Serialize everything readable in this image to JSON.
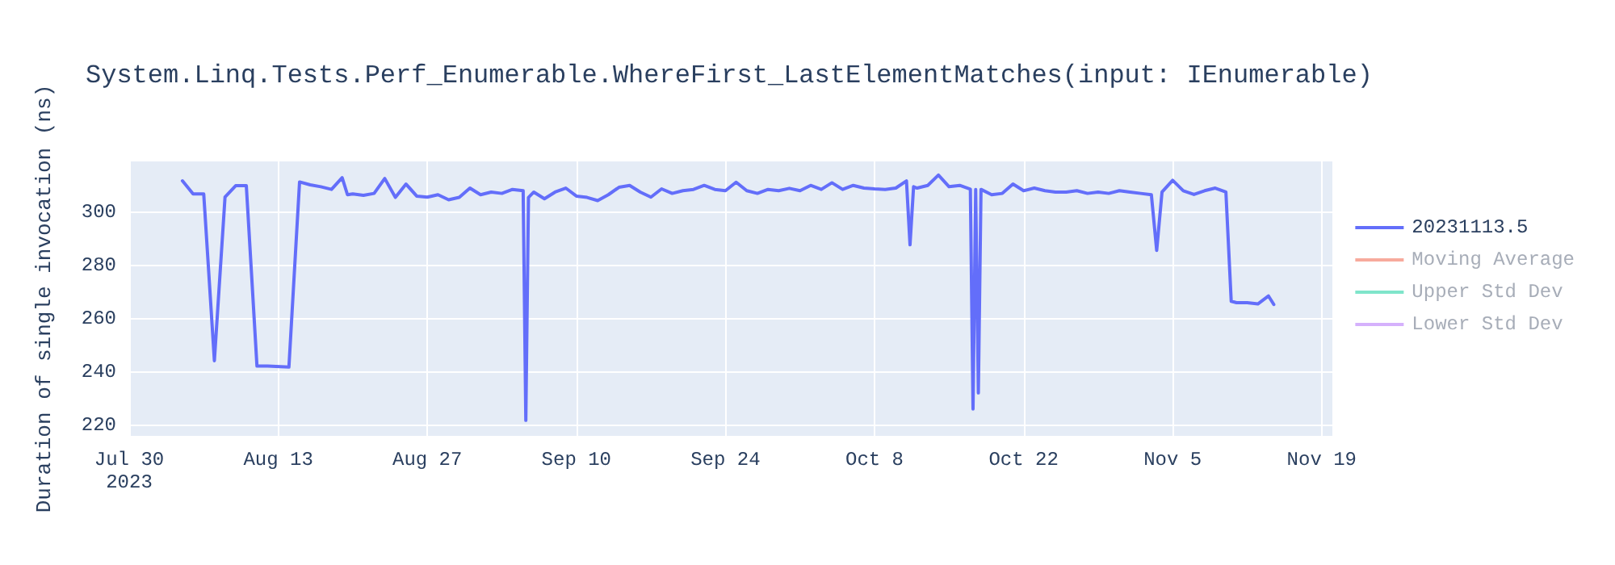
{
  "chart_data": {
    "type": "line",
    "title": "System.Linq.Tests.Perf_Enumerable.WhereFirst_LastElementMatches(input: IEnumerable)",
    "ylabel": "Duration of single invocation (ns)",
    "xlim": [
      "2023-07-30",
      "2023-11-20"
    ],
    "xticks": [
      {
        "value": "2023-07-30",
        "label": "Jul 30\n2023"
      },
      {
        "value": "2023-08-13",
        "label": "Aug 13"
      },
      {
        "value": "2023-08-27",
        "label": "Aug 27"
      },
      {
        "value": "2023-09-10",
        "label": "Sep 10"
      },
      {
        "value": "2023-09-24",
        "label": "Sep 24"
      },
      {
        "value": "2023-10-08",
        "label": "Oct 8"
      },
      {
        "value": "2023-10-22",
        "label": "Oct 22"
      },
      {
        "value": "2023-11-05",
        "label": "Nov 5"
      },
      {
        "value": "2023-11-19",
        "label": "Nov 19"
      }
    ],
    "ylim": [
      216,
      319
    ],
    "yticks": [
      220,
      240,
      260,
      280,
      300
    ],
    "grid": true,
    "legend": "top right",
    "marker": "none",
    "line_style": "solid",
    "series": [
      {
        "name": "20231113.5",
        "color": "#636efa",
        "x": [
          "2023-08-04",
          "2023-08-05",
          "2023-08-06",
          "2023-08-07",
          "2023-08-08",
          "2023-08-09",
          "2023-08-10",
          "2023-08-11",
          "2023-08-12",
          "2023-08-14",
          "2023-08-15",
          "2023-08-16",
          "2023-08-17",
          "2023-08-18",
          "2023-08-19T00:00",
          "2023-08-19T12:00",
          "2023-08-20",
          "2023-08-21",
          "2023-08-22",
          "2023-08-23",
          "2023-08-24",
          "2023-08-25",
          "2023-08-26",
          "2023-08-27",
          "2023-08-28",
          "2023-08-29",
          "2023-08-30",
          "2023-08-31",
          "2023-09-01",
          "2023-09-02",
          "2023-09-03",
          "2023-09-04",
          "2023-09-05T00:00",
          "2023-09-05T06:00",
          "2023-09-05T12:00",
          "2023-09-06",
          "2023-09-07",
          "2023-09-08",
          "2023-09-09",
          "2023-09-10",
          "2023-09-11",
          "2023-09-12",
          "2023-09-13",
          "2023-09-14",
          "2023-09-15",
          "2023-09-16",
          "2023-09-17",
          "2023-09-18",
          "2023-09-19",
          "2023-09-20",
          "2023-09-21",
          "2023-09-22",
          "2023-09-23",
          "2023-09-24",
          "2023-09-25",
          "2023-09-26",
          "2023-09-27",
          "2023-09-28",
          "2023-09-29",
          "2023-09-30",
          "2023-10-01",
          "2023-10-02",
          "2023-10-03",
          "2023-10-04",
          "2023-10-05",
          "2023-10-06",
          "2023-10-07",
          "2023-10-08",
          "2023-10-09",
          "2023-10-10",
          "2023-10-11T00:00",
          "2023-10-11T08:00",
          "2023-10-11T16:00",
          "2023-10-12",
          "2023-10-13",
          "2023-10-14",
          "2023-10-15",
          "2023-10-16",
          "2023-10-17T00:00",
          "2023-10-17T06:00",
          "2023-10-17T12:00",
          "2023-10-17T18:00",
          "2023-10-18",
          "2023-10-19",
          "2023-10-20",
          "2023-10-21",
          "2023-10-22",
          "2023-10-23",
          "2023-10-24",
          "2023-10-25",
          "2023-10-26",
          "2023-10-27",
          "2023-10-28",
          "2023-10-29",
          "2023-10-30",
          "2023-10-31",
          "2023-11-01",
          "2023-11-02",
          "2023-11-03T00:00",
          "2023-11-03T12:00",
          "2023-11-04",
          "2023-11-05",
          "2023-11-06",
          "2023-11-07",
          "2023-11-08",
          "2023-11-09",
          "2023-11-10T00:00",
          "2023-11-10T12:00",
          "2023-11-11",
          "2023-11-12",
          "2023-11-13",
          "2023-11-14T00:00",
          "2023-11-14T12:00"
        ],
        "values": [
          311.7,
          306.8,
          306.8,
          244.2,
          305.6,
          309.9,
          309.9,
          242.2,
          242.2,
          241.8,
          311.3,
          310.2,
          309.5,
          308.5,
          312.9,
          306.5,
          306.8,
          306.3,
          307,
          312.6,
          305.5,
          310.5,
          306,
          305.6,
          306.5,
          304.6,
          305.5,
          309,
          306.5,
          307.5,
          307,
          308.5,
          308,
          221.8,
          305.5,
          307.5,
          305,
          307.5,
          309,
          306,
          305.5,
          304.3,
          306.5,
          309.3,
          310,
          307.5,
          305.6,
          308.7,
          307,
          308,
          308.5,
          310,
          308.5,
          308,
          311.2,
          308,
          307,
          308.5,
          308,
          308.9,
          308,
          310,
          308.5,
          311,
          308.5,
          310,
          309,
          308.7,
          308.5,
          309,
          311.7,
          287.7,
          309.5,
          309,
          310,
          313.9,
          309.5,
          310,
          308.6,
          226.1,
          308.5,
          232.1,
          308.5,
          306.5,
          307,
          310.5,
          308,
          309,
          308,
          307.5,
          307.5,
          308,
          307,
          307.5,
          307,
          308,
          307.5,
          307,
          306.5,
          285.6,
          307.5,
          311.9,
          308,
          306.6,
          308,
          309,
          307.5,
          266.5,
          266,
          266,
          265.5,
          268.5,
          265.3
        ]
      },
      {
        "name": "Moving Average",
        "color": "#ef553b"
      },
      {
        "name": "Upper Std Dev",
        "color": "#00cc96"
      },
      {
        "name": "Lower Std Dev",
        "color": "#ab63fa"
      }
    ]
  }
}
